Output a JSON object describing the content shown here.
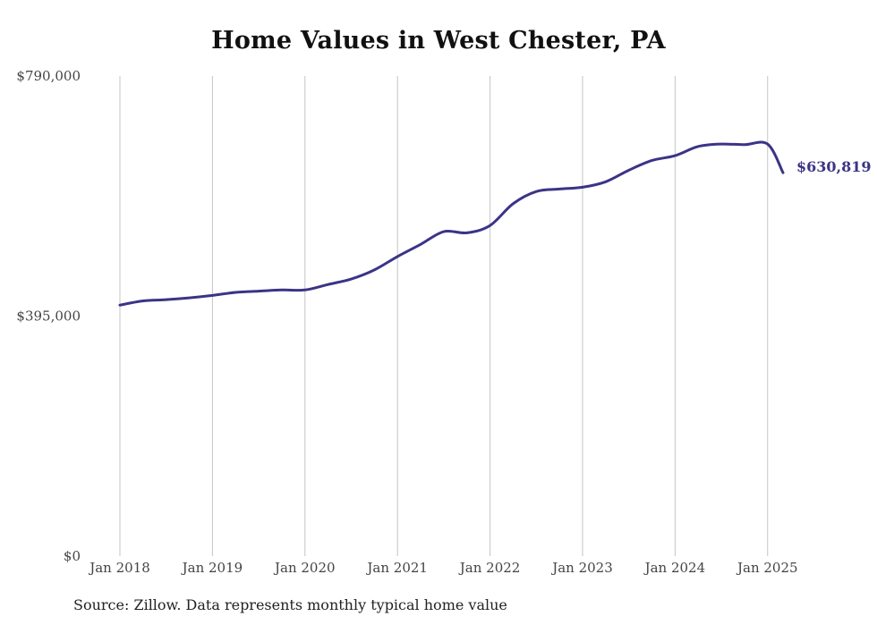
{
  "chart_data": {
    "type": "line",
    "title": "Home Values in West Chester, PA",
    "xlabel": "",
    "ylabel": "",
    "ylim": [
      0,
      790000
    ],
    "yticks": [
      {
        "value": 0,
        "label": "$0"
      },
      {
        "value": 395000,
        "label": "$395,000"
      },
      {
        "value": 790000,
        "label": "$790,000"
      }
    ],
    "xlim": [
      "2018-01",
      "2025-03"
    ],
    "xticks": [
      {
        "value": "2018-01",
        "label": "Jan 2018"
      },
      {
        "value": "2019-01",
        "label": "Jan 2019"
      },
      {
        "value": "2020-01",
        "label": "Jan 2020"
      },
      {
        "value": "2021-01",
        "label": "Jan 2021"
      },
      {
        "value": "2022-01",
        "label": "Jan 2022"
      },
      {
        "value": "2023-01",
        "label": "Jan 2023"
      },
      {
        "value": "2024-01",
        "label": "Jan 2024"
      },
      {
        "value": "2025-01",
        "label": "Jan 2025"
      }
    ],
    "grid": "vertical",
    "legend": "none",
    "line_color": "#3b3486",
    "end_label": "$630,819",
    "series": [
      {
        "x": [
          "2018-01",
          "2018-04",
          "2018-07",
          "2018-10",
          "2019-01",
          "2019-04",
          "2019-07",
          "2019-10",
          "2020-01",
          "2020-04",
          "2020-07",
          "2020-10",
          "2021-01",
          "2021-04",
          "2021-07",
          "2021-10",
          "2022-01",
          "2022-04",
          "2022-07",
          "2022-10",
          "2023-01",
          "2023-04",
          "2023-07",
          "2023-10",
          "2024-01",
          "2024-04",
          "2024-07",
          "2024-10",
          "2025-01",
          "2025-03"
        ],
        "values": [
          413000,
          420000,
          422000,
          425000,
          429000,
          434000,
          436000,
          438000,
          438000,
          447000,
          456000,
          471000,
          493000,
          513000,
          534000,
          532000,
          544000,
          580000,
          600000,
          604000,
          607000,
          616000,
          635000,
          651000,
          659000,
          674000,
          678000,
          677000,
          678000,
          630819
        ]
      }
    ]
  },
  "source_note": "Source: Zillow. Data represents monthly typical home value"
}
